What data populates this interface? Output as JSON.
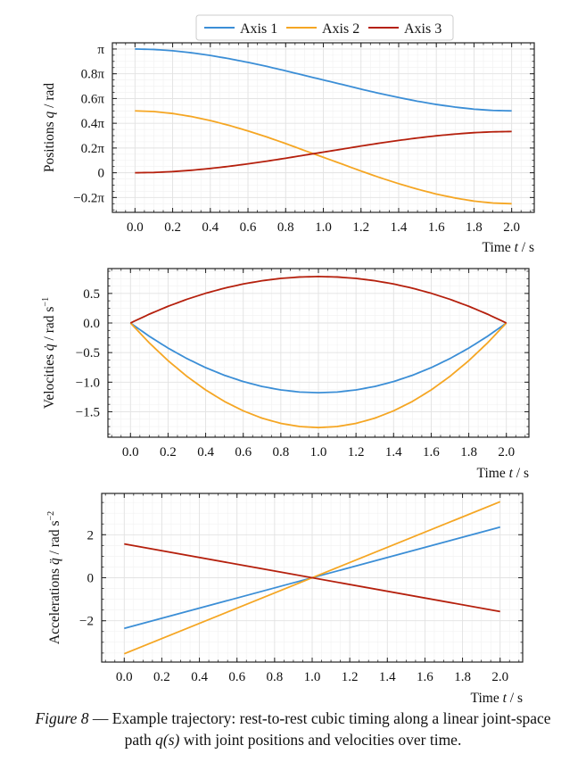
{
  "legend": {
    "entries": [
      {
        "label": "Axis 1",
        "color": "#3b8ed6"
      },
      {
        "label": "Axis 2",
        "color": "#f5a623"
      },
      {
        "label": "Axis 3",
        "color": "#b5200d"
      }
    ]
  },
  "caption": {
    "figure_label": "Figure 8",
    "text_line1": " — Example trajectory: rest-to-rest cubic timing along a linear joint-space",
    "text_line2_pre": "path ",
    "text_line2_math": "q(s)",
    "text_line2_post": " with joint positions and velocities over time."
  },
  "chart_data": [
    {
      "type": "line",
      "id": "positions",
      "title": "",
      "xlabel": "Time t / s",
      "ylabel": "Positions q / rad",
      "xlim": [
        -0.12,
        2.12
      ],
      "ylim": [
        -0.32,
        1.05
      ],
      "y_unit": "pi",
      "xticks": [
        0.0,
        0.2,
        0.4,
        0.6,
        0.8,
        1.0,
        1.2,
        1.4,
        1.6,
        1.8,
        2.0
      ],
      "xtick_labels": [
        "0.0",
        "0.2",
        "0.4",
        "0.6",
        "0.8",
        "1.0",
        "1.2",
        "1.4",
        "1.6",
        "1.8",
        "2.0"
      ],
      "yticks": [
        -0.2,
        0,
        0.2,
        0.4,
        0.6,
        0.8,
        1.0
      ],
      "ytick_labels": [
        "−0.2π",
        "0",
        "0.2π",
        "0.4π",
        "0.6π",
        "0.8π",
        "π"
      ],
      "grid": true,
      "legend": "top-center-outside",
      "x": [
        0.0,
        0.1,
        0.2,
        0.3,
        0.4,
        0.5,
        0.6,
        0.7,
        0.8,
        0.9,
        1.0,
        1.1,
        1.2,
        1.3,
        1.4,
        1.5,
        1.6,
        1.7,
        1.8,
        1.9,
        2.0
      ],
      "series": [
        {
          "name": "Axis 1",
          "values": [
            1.0,
            0.9964,
            0.986,
            0.9694,
            0.948,
            0.9219,
            0.892,
            0.8594,
            0.824,
            0.7866,
            0.75,
            0.7134,
            0.676,
            0.6406,
            0.608,
            0.5781,
            0.552,
            0.5306,
            0.514,
            0.5036,
            0.5
          ]
        },
        {
          "name": "Axis 2",
          "values": [
            0.5,
            0.4946,
            0.479,
            0.4541,
            0.422,
            0.3828,
            0.338,
            0.2891,
            0.236,
            0.1799,
            0.125,
            0.0701,
            0.014,
            -0.0391,
            -0.088,
            -0.1328,
            -0.172,
            -0.2041,
            -0.229,
            -0.2446,
            -0.25
          ]
        },
        {
          "name": "Axis 3",
          "values": [
            0.0,
            0.0024,
            0.0093,
            0.0204,
            0.0347,
            0.0521,
            0.072,
            0.0938,
            0.1173,
            0.1423,
            0.1667,
            0.1911,
            0.216,
            0.2396,
            0.2613,
            0.2813,
            0.2987,
            0.3129,
            0.324,
            0.3309,
            0.3333
          ]
        }
      ]
    },
    {
      "type": "line",
      "id": "velocities",
      "title": "",
      "xlabel": "Time t / s",
      "ylabel": "Velocities q̇ / rad s⁻¹",
      "xlim": [
        -0.12,
        2.12
      ],
      "ylim": [
        -1.93,
        0.92
      ],
      "xticks": [
        0.0,
        0.2,
        0.4,
        0.6,
        0.8,
        1.0,
        1.2,
        1.4,
        1.6,
        1.8,
        2.0
      ],
      "xtick_labels": [
        "0.0",
        "0.2",
        "0.4",
        "0.6",
        "0.8",
        "1.0",
        "1.2",
        "1.4",
        "1.6",
        "1.8",
        "2.0"
      ],
      "yticks": [
        -1.5,
        -1.0,
        -0.5,
        0.0,
        0.5
      ],
      "ytick_labels": [
        "−1.5",
        "−1.0",
        "−0.5",
        "0.0",
        "0.5"
      ],
      "grid": true,
      "x": [
        0.0,
        0.1,
        0.2,
        0.3,
        0.4,
        0.5,
        0.6,
        0.7,
        0.8,
        0.9,
        1.0,
        1.1,
        1.2,
        1.3,
        1.4,
        1.5,
        1.6,
        1.7,
        1.8,
        1.9,
        2.0
      ],
      "series": [
        {
          "name": "Axis 1",
          "values": [
            0.0,
            -0.2238,
            -0.4241,
            -0.6008,
            -0.754,
            -0.8836,
            -0.9896,
            -1.0721,
            -1.131,
            -1.1663,
            -1.1781,
            -1.1663,
            -1.131,
            -1.0721,
            -0.9896,
            -0.8836,
            -0.754,
            -0.6008,
            -0.4241,
            -0.2238,
            0.0
          ]
        },
        {
          "name": "Axis 2",
          "values": [
            0.0,
            -0.3357,
            -0.6362,
            -0.9012,
            -1.131,
            -1.3254,
            -1.4844,
            -1.6081,
            -1.6965,
            -1.7495,
            -1.7671,
            -1.7495,
            -1.6965,
            -1.6081,
            -1.4844,
            -1.3254,
            -1.131,
            -0.9012,
            -0.6362,
            -0.3357,
            0.0
          ]
        },
        {
          "name": "Axis 3",
          "values": [
            0.0,
            0.1492,
            0.2827,
            0.4005,
            0.5027,
            0.589,
            0.6597,
            0.7147,
            0.754,
            0.7775,
            0.7854,
            0.7775,
            0.754,
            0.7147,
            0.6597,
            0.589,
            0.5027,
            0.4005,
            0.2827,
            0.1492,
            0.0
          ]
        }
      ]
    },
    {
      "type": "line",
      "id": "accelerations",
      "title": "",
      "xlabel": "Time t / s",
      "ylabel": "Accelerations q̈ / rad s⁻²",
      "xlim": [
        -0.12,
        2.12
      ],
      "ylim": [
        -3.92,
        3.92
      ],
      "xticks": [
        0.0,
        0.2,
        0.4,
        0.6,
        0.8,
        1.0,
        1.2,
        1.4,
        1.6,
        1.8,
        2.0
      ],
      "xtick_labels": [
        "0.0",
        "0.2",
        "0.4",
        "0.6",
        "0.8",
        "1.0",
        "1.2",
        "1.4",
        "1.6",
        "1.8",
        "2.0"
      ],
      "yticks": [
        -2,
        0,
        2
      ],
      "ytick_labels": [
        "−2",
        "0",
        "2"
      ],
      "grid": true,
      "x": [
        0.0,
        2.0
      ],
      "series": [
        {
          "name": "Axis 1",
          "values": [
            -2.356,
            2.356
          ]
        },
        {
          "name": "Axis 2",
          "values": [
            -3.534,
            3.534
          ]
        },
        {
          "name": "Axis 3",
          "values": [
            1.571,
            -1.571
          ]
        }
      ]
    }
  ]
}
